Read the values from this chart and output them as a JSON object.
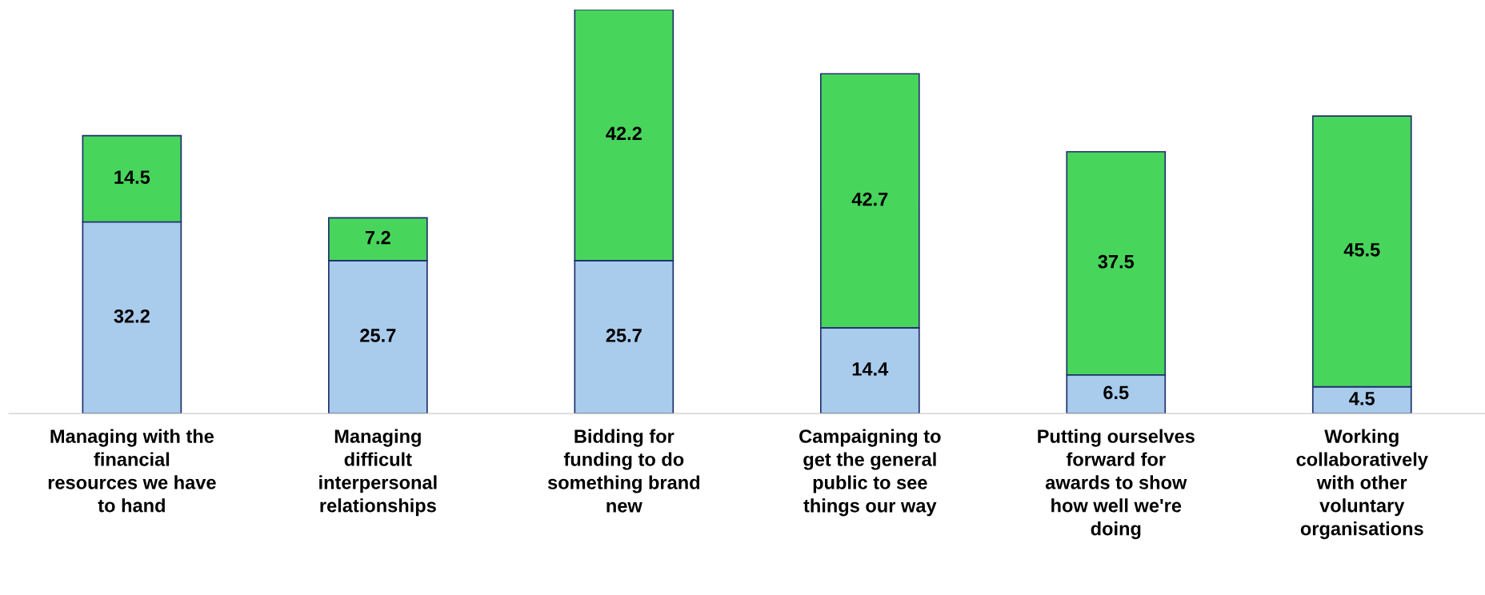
{
  "chart_data": {
    "type": "bar",
    "stacked": true,
    "data_labels": true,
    "grid": false,
    "legend": false,
    "categories": [
      "Managing with the financial resources we have to hand",
      "Managing difficult interpersonal relationships",
      "Bidding for funding to do something brand new",
      "Campaigning to get the general public to see things our way",
      "Putting ourselves forward for awards to show how well we're doing",
      "Working collaboratively with other voluntary organisations"
    ],
    "series": [
      {
        "color": "#a9cbec",
        "values": [
          32.2,
          25.7,
          25.7,
          14.4,
          6.5,
          4.5
        ]
      },
      {
        "color": "#48d55c",
        "values": [
          14.5,
          7.2,
          42.2,
          42.7,
          37.5,
          45.5
        ]
      }
    ]
  }
}
